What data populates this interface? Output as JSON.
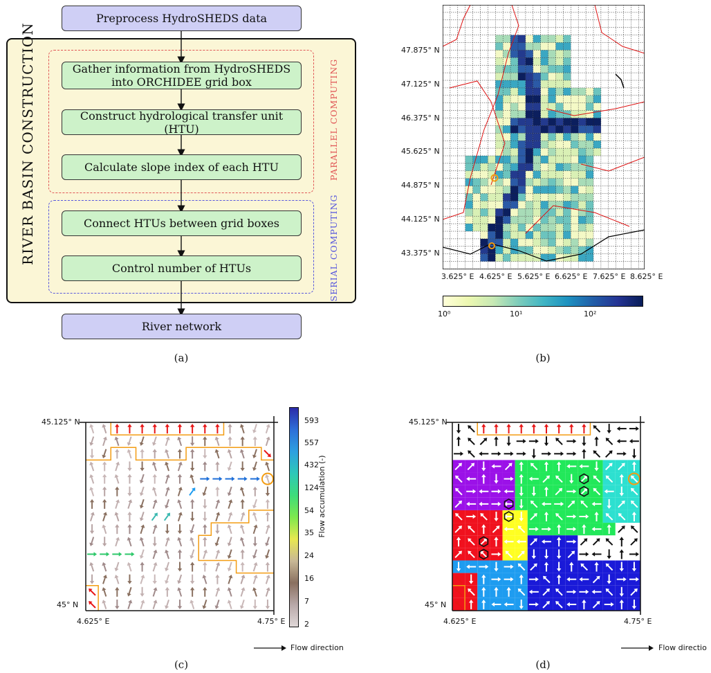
{
  "panel_a": {
    "top_box": "Preprocess HydroSHEDS data",
    "side_title": "RIVER BASIN CONSTRUCTION",
    "steps": [
      "Gather information from HydroSHEDS into ORCHIDEE grid box",
      "Construct hydrological transfer unit (HTU)",
      "Calculate slope index of each HTU",
      "Connect HTUs between grid boxes",
      "Control number of HTUs"
    ],
    "parallel_label": "PARALLEL COMPUTING",
    "serial_label": "SERIAL COMPUTING",
    "bottom_box": "River network",
    "colors": {
      "frame_fill": "#fbf6d6",
      "purple_box": "#cfcff5",
      "green_box": "#cdf2c9",
      "parallel": "#e05555",
      "serial": "#5555dd"
    }
  },
  "panel_b": {
    "lat_ticks": [
      "47.875° N",
      "47.125° N",
      "46.375° N",
      "45.625° N",
      "44.875° N",
      "44.125° N",
      "43.375° N"
    ],
    "lon_ticks": [
      "3.625° E",
      "4.625° E",
      "5.625° E",
      "6.625° E",
      "7.625° E",
      "8.625° E"
    ],
    "colorbar_ticks": [
      "10⁰",
      "10¹",
      "10²"
    ],
    "colors": {
      "low": "#f7f7c5",
      "mid": "#41b6c4",
      "high": "#08306b",
      "border": "#d11",
      "coast": "#000",
      "marker": "#f39c12"
    }
  },
  "panel_c": {
    "lat_ticks": [
      "45.125° N",
      "45° N"
    ],
    "lon_ticks": [
      "4.625° E",
      "4.75° E"
    ],
    "colorbar_label": "Flow accumulation (-)",
    "colorbar_ticks": [
      "593",
      "557",
      "432",
      "124",
      "54",
      "35",
      "24",
      "16",
      "7",
      "2"
    ],
    "legend": "Flow direction",
    "colors": {
      "boundary": "#f39c12",
      "outlet": "#d11"
    }
  },
  "panel_d": {
    "lat_ticks": [
      "45.125° N",
      "45° N"
    ],
    "lon_ticks": [
      "4.625° E",
      "4.75° E"
    ],
    "legend": "Flow directio",
    "colors": {
      "purple": "#9b11e8",
      "green": "#22e85a",
      "magenta": "#e01ed8",
      "cyan": "#2de0d0",
      "yellow": "#ffff22",
      "red": "#f0111e",
      "lightblue": "#1e9cf0",
      "blue": "#1a1ad8"
    }
  },
  "captions": [
    "(a)",
    "(b)",
    "(c)",
    "(d)"
  ]
}
